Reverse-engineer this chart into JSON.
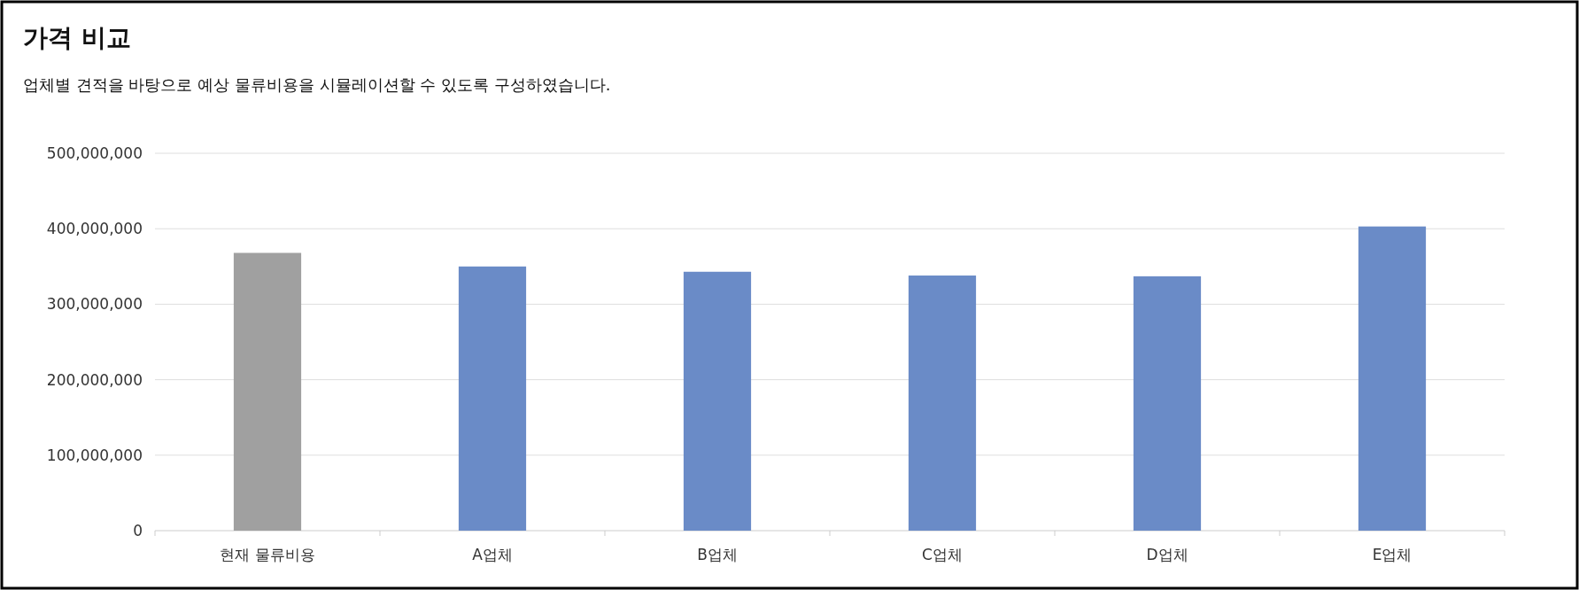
{
  "chart_data": {
    "type": "bar",
    "title": "가격 비교",
    "subtitle": "업체별 견적을 바탕으로 예상 물류비용을 시뮬레이션할 수 있도록 구성하였습니다.",
    "categories": [
      "현재 물류비용",
      "A업체",
      "B업체",
      "C업체",
      "D업체",
      "E업체"
    ],
    "values": [
      368000000,
      350000000,
      343000000,
      338000000,
      337000000,
      403000000
    ],
    "colors": [
      "#a0a0a0",
      "#6a8bc7",
      "#6a8bc7",
      "#6a8bc7",
      "#6a8bc7",
      "#6a8bc7"
    ],
    "ylim": [
      0,
      500000000
    ],
    "yticks": [
      {
        "value": 0,
        "label": "0"
      },
      {
        "value": 100000000,
        "label": "100,000,000"
      },
      {
        "value": 200000000,
        "label": "200,000,000"
      },
      {
        "value": 300000000,
        "label": "300,000,000"
      },
      {
        "value": 400000000,
        "label": "400,000,000"
      },
      {
        "value": 500000000,
        "label": "500,000,000"
      }
    ],
    "grid": "y"
  }
}
